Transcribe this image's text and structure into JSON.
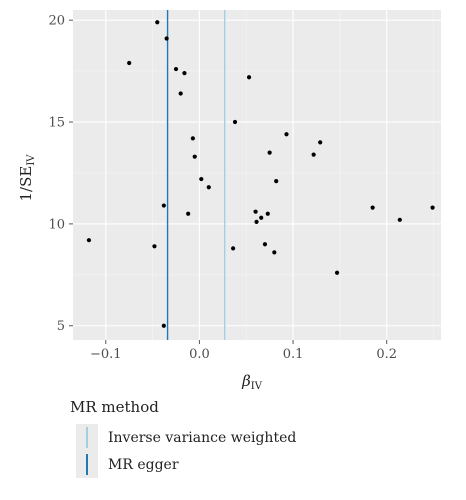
{
  "chart_data": {
    "type": "scatter",
    "title": "",
    "xlabel": "β",
    "xlabel_sub": "IV",
    "ylabel": "1/SE",
    "ylabel_sub": "IV",
    "xlim": [
      -0.135,
      0.258
    ],
    "ylim": [
      4.3,
      20.5
    ],
    "xticks": [
      -0.1,
      0.0,
      0.1,
      0.2
    ],
    "xtick_labels": [
      "−0.1",
      "0.0",
      "0.1",
      "0.2"
    ],
    "yticks": [
      5,
      10,
      15,
      20
    ],
    "ytick_labels": [
      "5",
      "10",
      "15",
      "20"
    ],
    "grid": true,
    "points": [
      {
        "x": -0.045,
        "y": 19.9
      },
      {
        "x": -0.035,
        "y": 19.1
      },
      {
        "x": -0.075,
        "y": 17.9
      },
      {
        "x": -0.025,
        "y": 17.6
      },
      {
        "x": -0.016,
        "y": 17.4
      },
      {
        "x": -0.02,
        "y": 16.4
      },
      {
        "x": 0.053,
        "y": 17.2
      },
      {
        "x": 0.038,
        "y": 15.0
      },
      {
        "x": -0.007,
        "y": 14.2
      },
      {
        "x": 0.093,
        "y": 14.4
      },
      {
        "x": 0.129,
        "y": 14.0
      },
      {
        "x": 0.075,
        "y": 13.5
      },
      {
        "x": 0.122,
        "y": 13.4
      },
      {
        "x": -0.005,
        "y": 13.3
      },
      {
        "x": 0.002,
        "y": 12.2
      },
      {
        "x": 0.01,
        "y": 11.8
      },
      {
        "x": 0.082,
        "y": 12.1
      },
      {
        "x": -0.038,
        "y": 10.9
      },
      {
        "x": -0.012,
        "y": 10.5
      },
      {
        "x": 0.06,
        "y": 10.6
      },
      {
        "x": 0.073,
        "y": 10.5
      },
      {
        "x": 0.066,
        "y": 10.3
      },
      {
        "x": 0.061,
        "y": 10.1
      },
      {
        "x": 0.185,
        "y": 10.8
      },
      {
        "x": 0.249,
        "y": 10.8
      },
      {
        "x": 0.214,
        "y": 10.2
      },
      {
        "x": -0.118,
        "y": 9.2
      },
      {
        "x": -0.048,
        "y": 8.9
      },
      {
        "x": 0.036,
        "y": 8.8
      },
      {
        "x": 0.07,
        "y": 9.0
      },
      {
        "x": 0.08,
        "y": 8.6
      },
      {
        "x": 0.147,
        "y": 7.6
      },
      {
        "x": -0.038,
        "y": 5.0
      }
    ],
    "vlines": [
      {
        "name": "Inverse variance weighted",
        "x": 0.027,
        "color": "#a6cee3"
      },
      {
        "name": "MR egger",
        "x": -0.034,
        "color": "#1f78b4"
      }
    ],
    "legend": {
      "title": "MR method",
      "placement": "bottom-left"
    }
  }
}
